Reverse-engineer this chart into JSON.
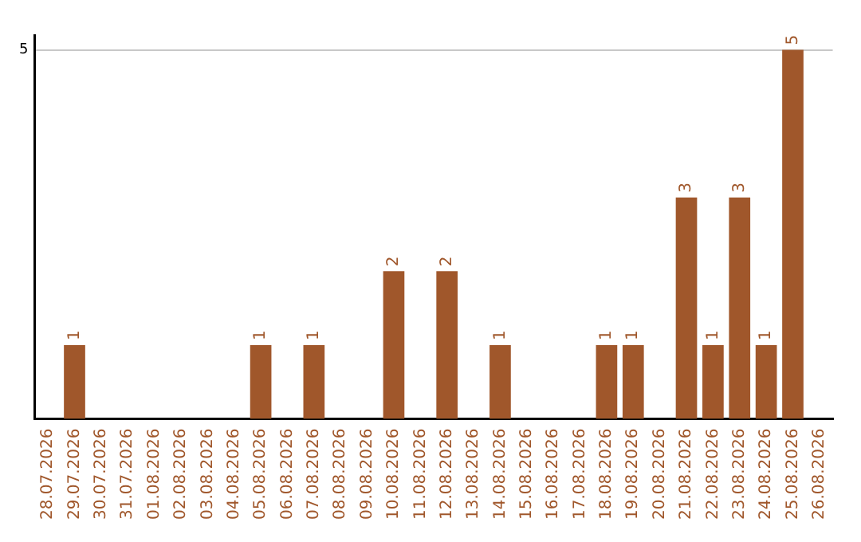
{
  "chart_data": {
    "type": "bar",
    "categories": [
      "28.07.2026",
      "29.07.2026",
      "30.07.2026",
      "31.07.2026",
      "01.08.2026",
      "02.08.2026",
      "03.08.2026",
      "04.08.2026",
      "05.08.2026",
      "06.08.2026",
      "07.08.2026",
      "08.08.2026",
      "09.08.2026",
      "10.08.2026",
      "11.08.2026",
      "12.08.2026",
      "13.08.2026",
      "14.08.2026",
      "15.08.2026",
      "16.08.2026",
      "17.08.2026",
      "18.08.2026",
      "19.08.2026",
      "20.08.2026",
      "21.08.2026",
      "22.08.2026",
      "23.08.2026",
      "24.08.2026",
      "25.08.2026",
      "26.08.2026"
    ],
    "values": [
      null,
      1,
      null,
      null,
      null,
      null,
      null,
      null,
      1,
      null,
      1,
      null,
      null,
      2,
      null,
      2,
      null,
      1,
      null,
      null,
      null,
      1,
      1,
      null,
      3,
      1,
      3,
      1,
      5,
      null
    ],
    "color": "#a0572b",
    "ylim": [
      0,
      5.2
    ],
    "yticks": [
      5
    ],
    "grid": "y",
    "data_labels": true,
    "legend": false
  }
}
